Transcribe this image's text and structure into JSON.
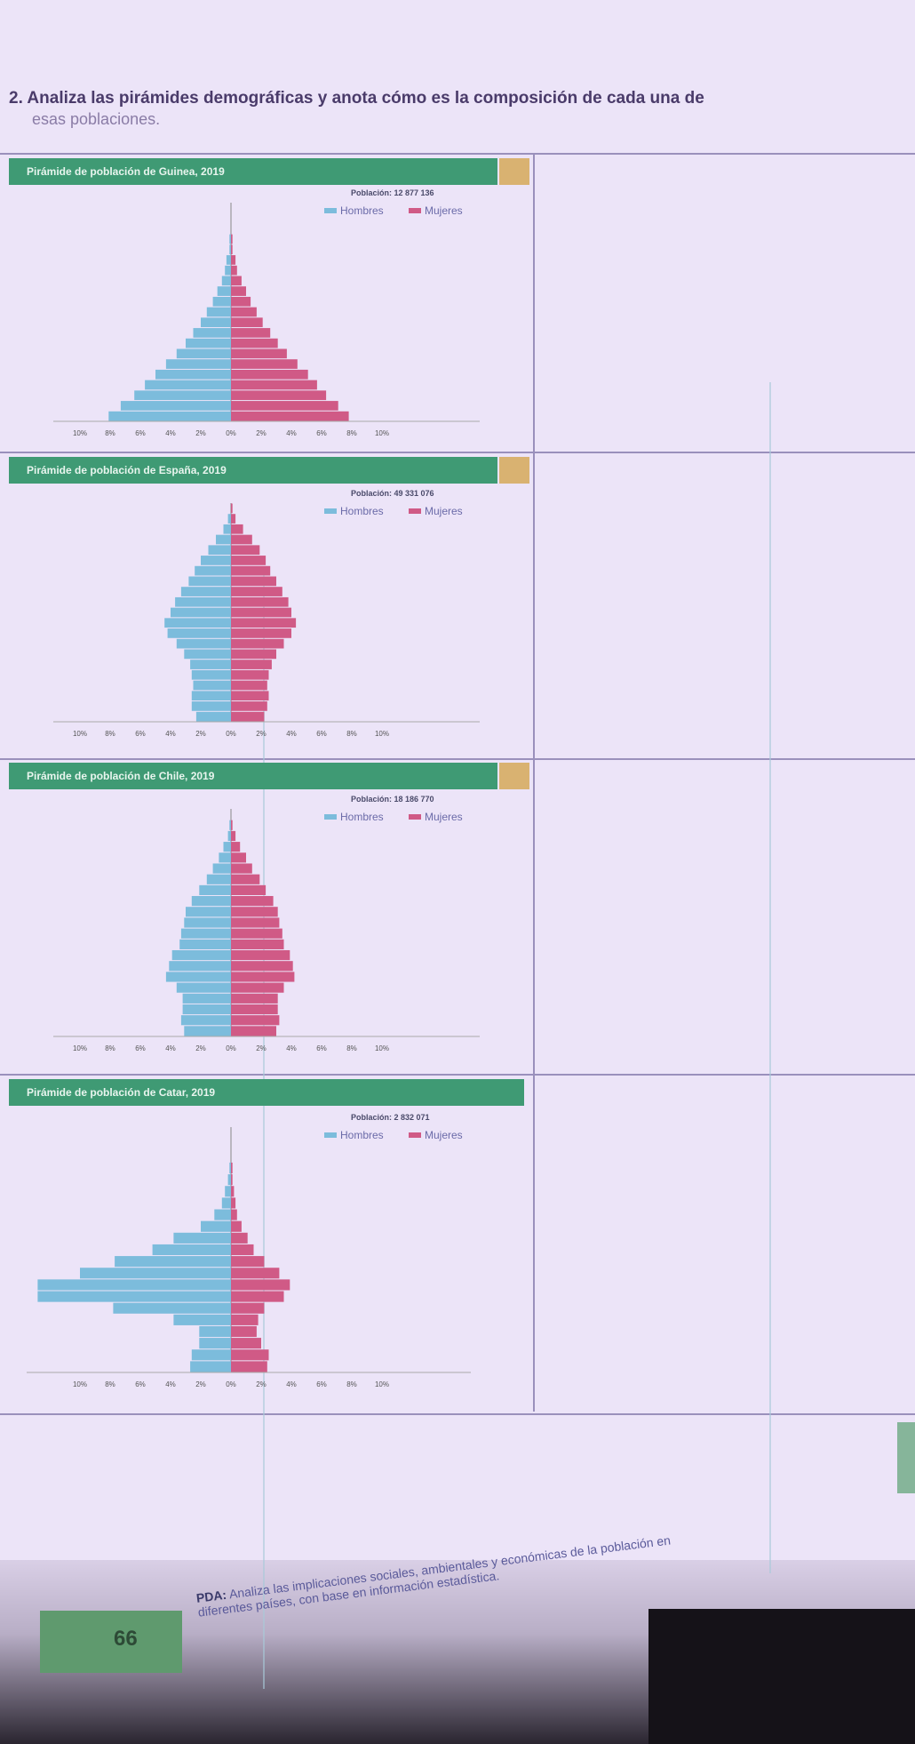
{
  "exercise": {
    "title": "2. Analiza las pirámides demográficas y anota cómo es la composición de cada una de",
    "subtitle": "esas poblaciones."
  },
  "legend": {
    "men": "Hombres",
    "women": "Mujeres"
  },
  "colors": {
    "men": "#7cbcdc",
    "women": "#d05a86",
    "header": "#3f9a74"
  },
  "pyramids": [
    {
      "title": "Pirámide de población de Guinea, 2019",
      "population": "Población: 12 877 136",
      "chart_data": {
        "type": "bar",
        "x_ticks": [
          "10%",
          "8%",
          "6%",
          "4%",
          "2%",
          "0%",
          "2%",
          "4%",
          "6%",
          "8%",
          "10%"
        ],
        "men": [
          8.1,
          7.3,
          6.4,
          5.7,
          5.0,
          4.3,
          3.6,
          3.0,
          2.5,
          2.0,
          1.6,
          1.2,
          0.9,
          0.6,
          0.4,
          0.3,
          0.1,
          0.1,
          0.0,
          0.0,
          0.0
        ],
        "women": [
          7.8,
          7.1,
          6.3,
          5.7,
          5.1,
          4.4,
          3.7,
          3.1,
          2.6,
          2.1,
          1.7,
          1.3,
          1.0,
          0.7,
          0.4,
          0.3,
          0.1,
          0.1,
          0.0,
          0.0,
          0.0
        ]
      }
    },
    {
      "title": "Pirámide de población de España, 2019",
      "population": "Población: 49 331 076",
      "chart_data": {
        "type": "bar",
        "x_ticks": [
          "10%",
          "8%",
          "6%",
          "4%",
          "2%",
          "0%",
          "2%",
          "4%",
          "6%",
          "8%",
          "10%"
        ],
        "men": [
          2.3,
          2.6,
          2.6,
          2.5,
          2.6,
          2.7,
          3.1,
          3.6,
          4.2,
          4.4,
          4.0,
          3.7,
          3.3,
          2.8,
          2.4,
          2.0,
          1.5,
          1.0,
          0.5,
          0.2,
          0.0
        ],
        "women": [
          2.2,
          2.4,
          2.5,
          2.4,
          2.5,
          2.7,
          3.0,
          3.5,
          4.0,
          4.3,
          4.0,
          3.8,
          3.4,
          3.0,
          2.6,
          2.3,
          1.9,
          1.4,
          0.8,
          0.3,
          0.1
        ]
      }
    },
    {
      "title": "Pirámide de población de Chile, 2019",
      "population": "Población: 18 186 770",
      "chart_data": {
        "type": "bar",
        "x_ticks": [
          "10%",
          "8%",
          "6%",
          "4%",
          "2%",
          "0%",
          "2%",
          "4%",
          "6%",
          "8%",
          "10%"
        ],
        "men": [
          3.1,
          3.3,
          3.2,
          3.2,
          3.6,
          4.3,
          4.1,
          3.9,
          3.4,
          3.3,
          3.1,
          3.0,
          2.6,
          2.1,
          1.6,
          1.2,
          0.8,
          0.5,
          0.2,
          0.1,
          0.0
        ],
        "women": [
          3.0,
          3.2,
          3.1,
          3.1,
          3.5,
          4.2,
          4.1,
          3.9,
          3.5,
          3.4,
          3.2,
          3.1,
          2.8,
          2.3,
          1.9,
          1.4,
          1.0,
          0.6,
          0.3,
          0.1,
          0.0
        ]
      }
    },
    {
      "title": "Pirámide de población de Catar, 2019",
      "population": "Población: 2 832 071",
      "chart_data": {
        "type": "bar",
        "x_ticks": [
          "10%",
          "8%",
          "6%",
          "4%",
          "2%",
          "0%",
          "2%",
          "4%",
          "6%",
          "8%",
          "10%"
        ],
        "men": [
          2.7,
          2.6,
          2.1,
          2.1,
          3.8,
          7.8,
          12.8,
          12.8,
          10.0,
          7.7,
          5.2,
          3.8,
          2.0,
          1.1,
          0.6,
          0.4,
          0.2,
          0.1,
          0.0,
          0.0,
          0.0
        ],
        "women": [
          2.4,
          2.5,
          2.0,
          1.7,
          1.8,
          2.2,
          3.5,
          3.9,
          3.2,
          2.2,
          1.5,
          1.1,
          0.7,
          0.4,
          0.3,
          0.2,
          0.1,
          0.1,
          0.0,
          0.0,
          0.0
        ]
      }
    }
  ],
  "footer": {
    "page_number": "66",
    "pda_label": "PDA:",
    "pda_text": "Analiza las implicaciones sociales, ambientales y económicas de la población en diferentes países, con base en información estadística."
  }
}
